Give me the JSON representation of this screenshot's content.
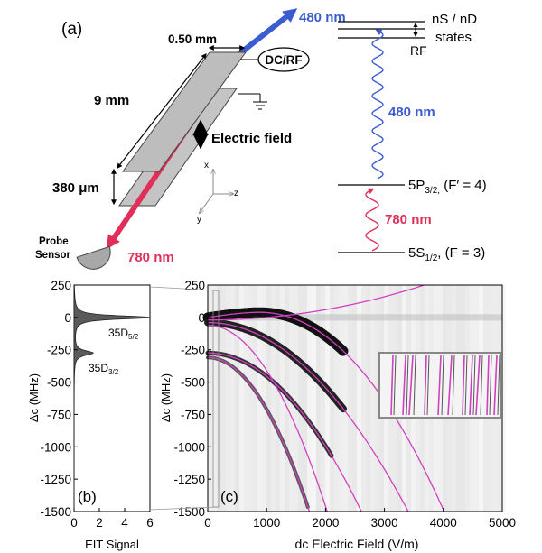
{
  "panel_a": {
    "label": "(a)",
    "dim_gap": "0.50 mm",
    "dim_length": "9 mm",
    "dim_separation": "380 μm",
    "dcrf_label": "DC/RF",
    "efield_label": "Electric field",
    "axis_x": "x",
    "axis_y": "y",
    "axis_z": "z",
    "probe_sensor": [
      "Probe",
      "Sensor"
    ],
    "beam_780": "780 nm",
    "beam_480": "480 nm"
  },
  "levels": {
    "rydberg": [
      "nS / nD",
      "states"
    ],
    "rf": "RF",
    "p32": {
      "base": "5P",
      "sub": "3/2,",
      "tail": " (F′ = 4)"
    },
    "s12": {
      "base": "5S",
      "sub": "1/2",
      "tail": ", (F = 3)"
    },
    "wave_480": "480 nm",
    "wave_780": "780 nm"
  },
  "colors": {
    "blue": "#3b5bd0",
    "red": "#e0305a",
    "magenta": "#d040c0",
    "plate": "#bdbdbd"
  },
  "chart_data": [
    {
      "type": "line",
      "panel": "(b)",
      "xlabel": "EIT Signal",
      "ylabel": "Δc (MHz)",
      "xlim": [
        0,
        6
      ],
      "ylim": [
        -1500,
        250
      ],
      "x_ticks": [
        "0",
        "2",
        "4",
        "6"
      ],
      "y_ticks": [
        "250",
        "0",
        "-250",
        "-500",
        "-750",
        "-1000",
        "-1250",
        "-1500"
      ],
      "peaks": [
        {
          "label_base": "35D",
          "label_sub": "5/2",
          "delta": 0,
          "height": 6
        },
        {
          "label_base": "35D",
          "label_sub": "3/2",
          "delta": -275,
          "height": 1.5
        }
      ]
    },
    {
      "type": "heatmap",
      "panel": "(c)",
      "xlabel": "dc Electric Field (V/m)",
      "ylabel": "Δc (MHz)",
      "xlim": [
        0,
        5000
      ],
      "ylim": [
        -1500,
        250
      ],
      "x_ticks": [
        "0",
        "1000",
        "2000",
        "3000",
        "4000",
        "5000"
      ],
      "y_ticks": [
        "250",
        "0",
        "-250",
        "-500",
        "-750",
        "-1000",
        "-1250",
        "-1500"
      ]
    }
  ]
}
